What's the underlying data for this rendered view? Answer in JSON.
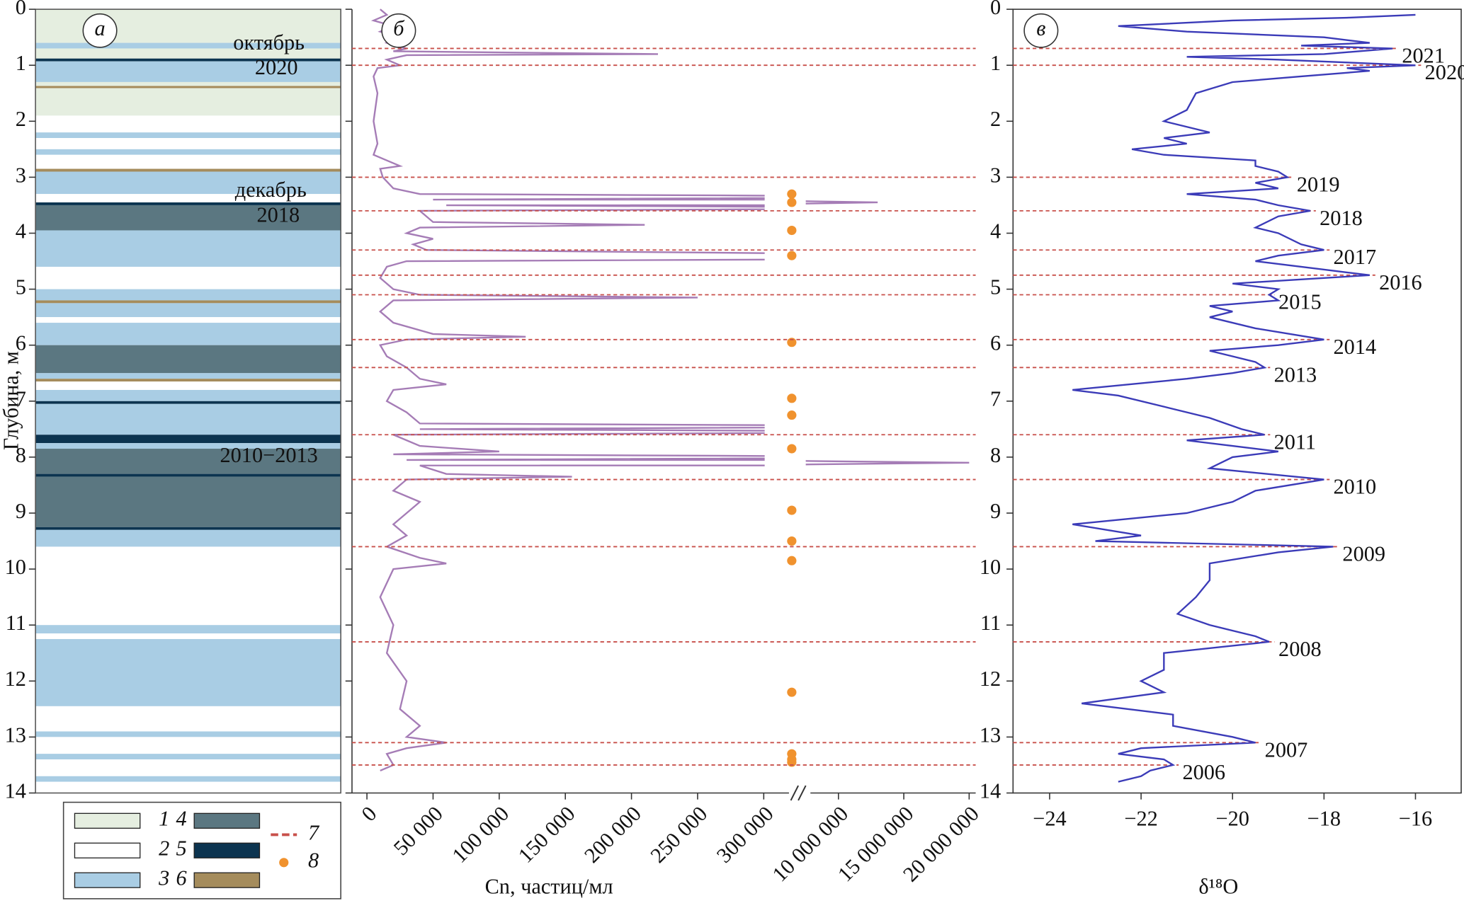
{
  "chart_data": [
    {
      "type": "column",
      "panel": "а",
      "ylabel": "Глубина, м",
      "yticks": [
        0,
        1,
        2,
        3,
        4,
        5,
        6,
        7,
        8,
        9,
        10,
        11,
        12,
        13,
        14
      ],
      "ylim": [
        0,
        14
      ],
      "annotations": [
        [
          "октябрь",
          "2020"
        ],
        [
          "декабрь",
          "2018"
        ],
        [
          "2010−2013"
        ]
      ],
      "legend": [
        {
          "label": "1",
          "color": "#e5eee0"
        },
        {
          "label": "2",
          "color": "#ffffff"
        },
        {
          "label": "3",
          "color": "#a9cde4"
        },
        {
          "label": "4",
          "color": "#5b7781"
        },
        {
          "label": "5",
          "color": "#0c3450"
        },
        {
          "label": "6",
          "color": "#a58c5c"
        },
        {
          "label": "7",
          "color": "#c8504b"
        },
        {
          "label": "8",
          "color": "#f0922e"
        }
      ],
      "layers": [
        {
          "top": 0,
          "bottom": 0.6,
          "type": 1
        },
        {
          "top": 0.6,
          "bottom": 0.7,
          "type": 3
        },
        {
          "top": 0.7,
          "bottom": 0.88,
          "type": 1
        },
        {
          "top": 0.88,
          "bottom": 0.93,
          "type": 5
        },
        {
          "top": 0.93,
          "bottom": 1.3,
          "type": 3
        },
        {
          "top": 1.3,
          "bottom": 1.37,
          "type": 1
        },
        {
          "top": 1.37,
          "bottom": 1.41,
          "type": 6
        },
        {
          "top": 1.41,
          "bottom": 1.9,
          "type": 1
        },
        {
          "top": 1.9,
          "bottom": 2.2,
          "type": 2
        },
        {
          "top": 2.2,
          "bottom": 2.3,
          "type": 3
        },
        {
          "top": 2.3,
          "bottom": 2.5,
          "type": 2
        },
        {
          "top": 2.5,
          "bottom": 2.6,
          "type": 3
        },
        {
          "top": 2.6,
          "bottom": 2.85,
          "type": 2
        },
        {
          "top": 2.85,
          "bottom": 2.9,
          "type": 6
        },
        {
          "top": 2.9,
          "bottom": 3.3,
          "type": 3
        },
        {
          "top": 3.3,
          "bottom": 3.45,
          "type": 2
        },
        {
          "top": 3.45,
          "bottom": 3.5,
          "type": 5
        },
        {
          "top": 3.5,
          "bottom": 3.95,
          "type": 4
        },
        {
          "top": 3.95,
          "bottom": 4.6,
          "type": 3
        },
        {
          "top": 4.6,
          "bottom": 5.0,
          "type": 2
        },
        {
          "top": 5.0,
          "bottom": 5.2,
          "type": 3
        },
        {
          "top": 5.2,
          "bottom": 5.25,
          "type": 6
        },
        {
          "top": 5.25,
          "bottom": 5.5,
          "type": 3
        },
        {
          "top": 5.5,
          "bottom": 5.6,
          "type": 2
        },
        {
          "top": 5.6,
          "bottom": 6.0,
          "type": 3
        },
        {
          "top": 6.0,
          "bottom": 6.5,
          "type": 4
        },
        {
          "top": 6.5,
          "bottom": 6.6,
          "type": 3
        },
        {
          "top": 6.6,
          "bottom": 6.65,
          "type": 6
        },
        {
          "top": 6.65,
          "bottom": 6.8,
          "type": 2
        },
        {
          "top": 6.8,
          "bottom": 7.0,
          "type": 3
        },
        {
          "top": 7.0,
          "bottom": 7.05,
          "type": 5
        },
        {
          "top": 7.05,
          "bottom": 7.6,
          "type": 3
        },
        {
          "top": 7.6,
          "bottom": 7.75,
          "type": 5
        },
        {
          "top": 7.75,
          "bottom": 7.85,
          "type": 3
        },
        {
          "top": 7.85,
          "bottom": 8.3,
          "type": 4
        },
        {
          "top": 8.3,
          "bottom": 8.35,
          "type": 5
        },
        {
          "top": 8.35,
          "bottom": 9.25,
          "type": 4
        },
        {
          "top": 9.25,
          "bottom": 9.3,
          "type": 5
        },
        {
          "top": 9.3,
          "bottom": 9.6,
          "type": 3
        },
        {
          "top": 9.6,
          "bottom": 11.0,
          "type": 2
        },
        {
          "top": 11.0,
          "bottom": 11.15,
          "type": 3
        },
        {
          "top": 11.15,
          "bottom": 11.25,
          "type": 2
        },
        {
          "top": 11.25,
          "bottom": 12.45,
          "type": 3
        },
        {
          "top": 12.45,
          "bottom": 12.9,
          "type": 2
        },
        {
          "top": 12.9,
          "bottom": 13.0,
          "type": 3
        },
        {
          "top": 13.0,
          "bottom": 13.3,
          "type": 2
        },
        {
          "top": 13.3,
          "bottom": 13.4,
          "type": 3
        },
        {
          "top": 13.4,
          "bottom": 13.7,
          "type": 2
        },
        {
          "top": 13.7,
          "bottom": 13.8,
          "type": 3
        },
        {
          "top": 13.8,
          "bottom": 14,
          "type": 2
        }
      ]
    },
    {
      "type": "line",
      "panel": "б",
      "xlabel": "Cn, частиц/мл",
      "color": "#a57cb6",
      "dots_color": "#f0922e",
      "ylim": [
        0,
        14
      ],
      "yticks": [
        0,
        1,
        2,
        3,
        4,
        5,
        6,
        7,
        8,
        9,
        10,
        11,
        12,
        13,
        14
      ],
      "xlim": [
        0,
        300000
      ],
      "xticks": [
        0,
        {
          "value": 50000,
          "label": "50 000"
        },
        {
          "value": 100000,
          "label": "100 000"
        },
        {
          "value": 150000,
          "label": "150 000"
        },
        {
          "value": 200000,
          "label": "200 000"
        },
        {
          "value": 250000,
          "label": "250 000"
        },
        {
          "value": 300000,
          "label": "300 000"
        }
      ],
      "x2lim": [
        7500000,
        20000000
      ],
      "x2ticks": [
        {
          "value": 10000000,
          "label": "10 000 000"
        },
        {
          "value": 15000000,
          "label": "15 000 000"
        },
        {
          "value": 20000000,
          "label": "20 000 000"
        }
      ],
      "depth": [
        0,
        0.1,
        0.2,
        0.3,
        0.4,
        0.5,
        0.6,
        0.7,
        0.75,
        0.8,
        0.82,
        0.9,
        1.0,
        1.05,
        1.2,
        1.5,
        2.0,
        2.4,
        2.6,
        2.7,
        2.8,
        2.85,
        3.0,
        3.2,
        3.3,
        3.35,
        3.4,
        3.45,
        3.5,
        3.55,
        3.6,
        3.8,
        3.85,
        3.9,
        4.0,
        4.1,
        4.2,
        4.3,
        4.4,
        4.45,
        4.5,
        4.6,
        4.8,
        5.0,
        5.1,
        5.15,
        5.2,
        5.4,
        5.6,
        5.8,
        5.85,
        5.9,
        6.0,
        6.2,
        6.4,
        6.6,
        6.7,
        6.8,
        7.0,
        7.2,
        7.4,
        7.45,
        7.5,
        7.55,
        7.6,
        7.8,
        7.9,
        7.95,
        8.0,
        8.05,
        8.1,
        8.15,
        8.3,
        8.35,
        8.4,
        8.6,
        8.8,
        9.0,
        9.2,
        9.4,
        9.6,
        9.8,
        9.9,
        10.0,
        10.5,
        11.0,
        11.5,
        12.0,
        12.5,
        12.8,
        13.0,
        13.1,
        13.2,
        13.3,
        13.5,
        13.6
      ],
      "values": [
        10000,
        15000,
        5000,
        20000,
        10000,
        25000,
        15000,
        30000,
        20000,
        220000,
        30000,
        15000,
        25000,
        8000,
        5000,
        8000,
        5000,
        8000,
        5000,
        15000,
        25000,
        10000,
        12000,
        20000,
        40000,
        500000,
        50000,
        13000000,
        60000,
        500000,
        40000,
        50000,
        210000,
        40000,
        30000,
        50000,
        35000,
        45000,
        500000,
        500000,
        30000,
        15000,
        10000,
        20000,
        40000,
        250000,
        20000,
        10000,
        20000,
        50000,
        120000,
        30000,
        10000,
        15000,
        30000,
        40000,
        60000,
        20000,
        15000,
        30000,
        40000,
        500000,
        40000,
        500000,
        20000,
        40000,
        100000,
        20000,
        500000,
        30000,
        20000000,
        40000,
        60000,
        155000,
        30000,
        20000,
        40000,
        30000,
        20000,
        30000,
        15000,
        40000,
        60000,
        20000,
        10000,
        20000,
        15000,
        30000,
        25000,
        40000,
        30000,
        60000,
        30000,
        15000,
        20000,
        10000
      ],
      "dots": [
        3.3,
        3.45,
        3.95,
        4.4,
        5.95,
        6.95,
        7.25,
        7.85,
        8.95,
        9.5,
        9.85,
        12.2,
        13.3,
        13.4,
        13.45
      ]
    },
    {
      "type": "line",
      "panel": "в",
      "xlabel": "δ¹⁸O",
      "color": "#3b3bb8",
      "marker_color": "#c8504b",
      "ylim": [
        0,
        14
      ],
      "yticks": [
        0,
        1,
        2,
        3,
        4,
        5,
        6,
        7,
        8,
        9,
        10,
        11,
        12,
        13,
        14
      ],
      "xlim": [
        -24.8,
        -15
      ],
      "xticks": [
        {
          "value": -24,
          "label": "−24"
        },
        {
          "value": -22,
          "label": "−22"
        },
        {
          "value": -20,
          "label": "−20"
        },
        {
          "value": -18,
          "label": "−18"
        },
        {
          "value": -16,
          "label": "−16"
        }
      ],
      "depth": [
        0.1,
        0.15,
        0.2,
        0.3,
        0.4,
        0.5,
        0.6,
        0.65,
        0.7,
        0.8,
        0.85,
        0.9,
        1.0,
        1.05,
        1.1,
        1.2,
        1.3,
        1.5,
        1.8,
        2.0,
        2.2,
        2.3,
        2.4,
        2.5,
        2.6,
        2.7,
        2.8,
        2.9,
        3.0,
        3.1,
        3.2,
        3.3,
        3.4,
        3.5,
        3.6,
        3.7,
        3.9,
        4.0,
        4.2,
        4.3,
        4.4,
        4.5,
        4.6,
        4.7,
        4.75,
        4.9,
        5.0,
        5.1,
        5.2,
        5.3,
        5.4,
        5.5,
        5.7,
        5.9,
        6.0,
        6.1,
        6.2,
        6.3,
        6.4,
        6.5,
        6.6,
        6.8,
        6.9,
        7.1,
        7.3,
        7.5,
        7.6,
        7.7,
        7.8,
        7.9,
        8.0,
        8.2,
        8.4,
        8.6,
        8.8,
        9.0,
        9.2,
        9.4,
        9.5,
        9.6,
        9.7,
        9.9,
        10.2,
        10.5,
        10.8,
        11.0,
        11.2,
        11.3,
        11.5,
        11.8,
        12.0,
        12.2,
        12.4,
        12.6,
        12.8,
        13.0,
        13.1,
        13.2,
        13.3,
        13.4,
        13.5,
        13.6,
        13.7,
        13.8
      ],
      "values": [
        -16,
        -17.5,
        -20,
        -22.5,
        -21,
        -18,
        -17,
        -18.5,
        -16.5,
        -18,
        -21,
        -19,
        -16,
        -17.5,
        -17,
        -18.5,
        -20,
        -20.8,
        -21,
        -21.5,
        -20.5,
        -21.5,
        -21,
        -22.2,
        -21.5,
        -19.5,
        -19.5,
        -19,
        -18.8,
        -19.5,
        -19,
        -21,
        -19.5,
        -19,
        -18.3,
        -19,
        -19.5,
        -19,
        -18.5,
        -18,
        -19,
        -19.5,
        -18.5,
        -17.5,
        -17,
        -20,
        -19,
        -19.2,
        -19,
        -20.5,
        -20,
        -20.5,
        -19.5,
        -18,
        -19,
        -20.5,
        -20,
        -19.5,
        -19.3,
        -20,
        -21,
        -23.5,
        -22.5,
        -21.5,
        -20.5,
        -19.8,
        -19.3,
        -21,
        -20,
        -19,
        -20,
        -20.5,
        -18,
        -19.5,
        -20,
        -21,
        -23.5,
        -22,
        -23,
        -17.8,
        -19,
        -20.5,
        -20.5,
        -20.8,
        -21.2,
        -20.5,
        -19.5,
        -19.2,
        -21.5,
        -21.5,
        -22,
        -21.5,
        -23.3,
        -21.3,
        -21.3,
        -20,
        -19.5,
        -22,
        -22.5,
        -21.5,
        -21.3,
        -21.8,
        -22,
        -22.5
      ],
      "markers": [
        {
          "depth": 0.7,
          "label": "2021"
        },
        {
          "depth": 1.0,
          "label": "2020"
        },
        {
          "depth": 3.0,
          "label": "2019"
        },
        {
          "depth": 3.6,
          "label": "2018"
        },
        {
          "depth": 4.3,
          "label": "2017"
        },
        {
          "depth": 4.75,
          "label": "2016"
        },
        {
          "depth": 5.1,
          "label": "2015"
        },
        {
          "depth": 5.9,
          "label": "2014"
        },
        {
          "depth": 6.4,
          "label": "2013"
        },
        {
          "depth": 7.6,
          "label": "2011"
        },
        {
          "depth": 8.4,
          "label": "2010"
        },
        {
          "depth": 9.6,
          "label": "2009"
        },
        {
          "depth": 11.3,
          "label": "2008"
        },
        {
          "depth": 13.1,
          "label": "2007"
        },
        {
          "depth": 13.5,
          "label": "2006"
        }
      ]
    }
  ]
}
